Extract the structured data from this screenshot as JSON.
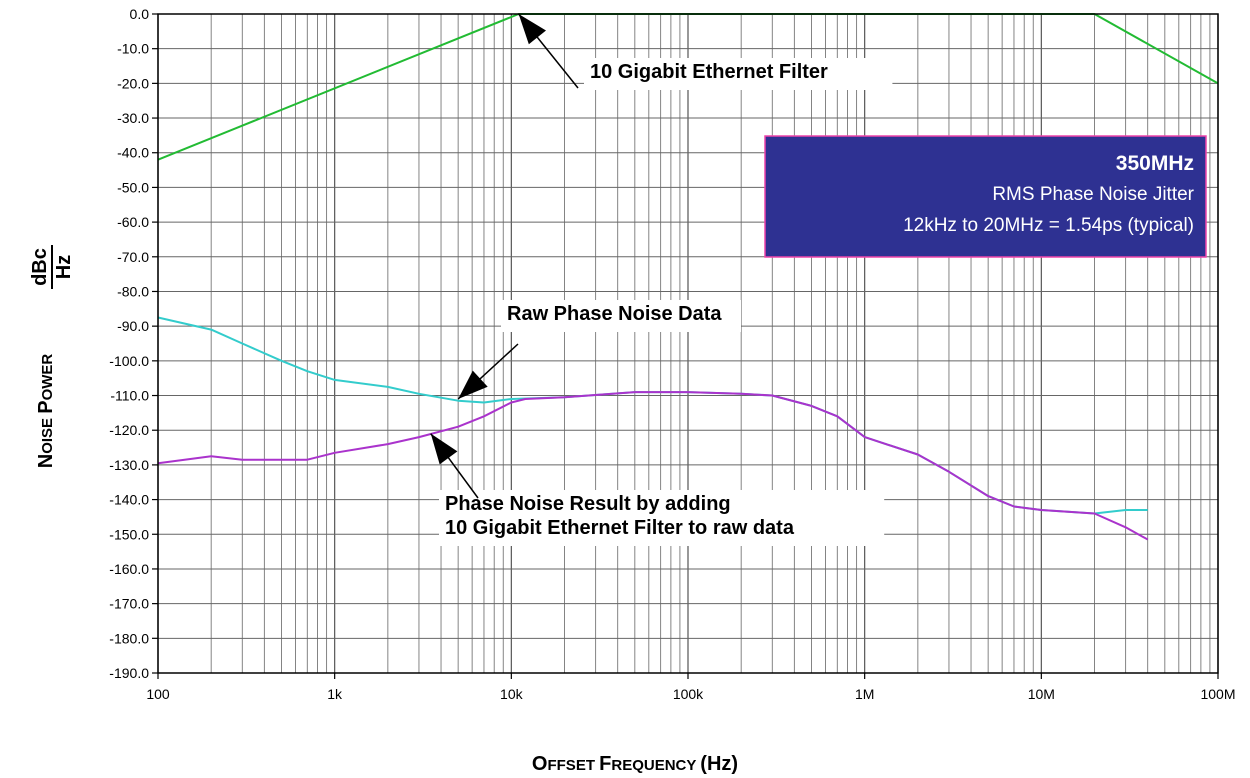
{
  "chart_data": {
    "type": "line",
    "xscale": "log",
    "xlim": [
      100,
      100000000
    ],
    "ylim": [
      -190,
      0
    ],
    "grid": true,
    "xlabel": {
      "first_big": "O",
      "first_small": "FFSET ",
      "second_big": "F",
      "second_small": "REQUENCY ",
      "unit": "(Hz)"
    },
    "ylabel": {
      "first_big": "N",
      "first_small": "OISE ",
      "second_big": "P",
      "second_small": "OWER",
      "unit_top": "dBc",
      "unit_bottom": "Hz"
    },
    "x_ticks": [
      {
        "value": 100,
        "label": "100"
      },
      {
        "value": 1000,
        "label": "1k"
      },
      {
        "value": 10000,
        "label": "10k"
      },
      {
        "value": 100000,
        "label": "100k"
      },
      {
        "value": 1000000,
        "label": "1M"
      },
      {
        "value": 10000000,
        "label": "10M"
      },
      {
        "value": 100000000,
        "label": "100M"
      }
    ],
    "y_ticks": [
      {
        "value": 0,
        "label": "0.0"
      },
      {
        "value": -10,
        "label": "-10.0"
      },
      {
        "value": -20,
        "label": "-20.0"
      },
      {
        "value": -30,
        "label": "-30.0"
      },
      {
        "value": -40,
        "label": "-40.0"
      },
      {
        "value": -50,
        "label": "-50.0"
      },
      {
        "value": -60,
        "label": "-60.0"
      },
      {
        "value": -70,
        "label": "-70.0"
      },
      {
        "value": -80,
        "label": "-80.0"
      },
      {
        "value": -90,
        "label": "-90.0"
      },
      {
        "value": -100,
        "label": "-100.0"
      },
      {
        "value": -110,
        "label": "-110.0"
      },
      {
        "value": -120,
        "label": "-120.0"
      },
      {
        "value": -130,
        "label": "-130.0"
      },
      {
        "value": -140,
        "label": "-140.0"
      },
      {
        "value": -150,
        "label": "-150.0"
      },
      {
        "value": -160,
        "label": "-160.0"
      },
      {
        "value": -170,
        "label": "-170.0"
      },
      {
        "value": -180,
        "label": "-180.0"
      },
      {
        "value": -190,
        "label": "-190.0"
      }
    ],
    "series": [
      {
        "color": "#22bb33",
        "points": [
          [
            100,
            -42
          ],
          [
            11000,
            0
          ],
          [
            20000000,
            0
          ],
          [
            100000000,
            -20
          ]
        ]
      },
      {
        "color": "#33cccc",
        "points": [
          [
            100,
            -87.5
          ],
          [
            200,
            -91
          ],
          [
            300,
            -95
          ],
          [
            500,
            -100
          ],
          [
            700,
            -103
          ],
          [
            1000,
            -105.5
          ],
          [
            2000,
            -107.5
          ],
          [
            3000,
            -109.5
          ],
          [
            5000,
            -111.5
          ],
          [
            7000,
            -112
          ],
          [
            10000,
            -111
          ],
          [
            20000,
            -110.5
          ],
          [
            50000,
            -109
          ],
          [
            100000,
            -109
          ],
          [
            200000,
            -109.5
          ],
          [
            300000,
            -110
          ],
          [
            500000,
            -113
          ],
          [
            700000,
            -116
          ],
          [
            1000000,
            -122
          ],
          [
            2000000,
            -127
          ],
          [
            3000000,
            -132
          ],
          [
            5000000,
            -139
          ],
          [
            7000000,
            -142
          ],
          [
            10000000,
            -143
          ],
          [
            20000000,
            -144
          ],
          [
            30000000,
            -143
          ],
          [
            40000000,
            -143
          ]
        ]
      },
      {
        "color": "#aa33cc",
        "points": [
          [
            100,
            -129.5
          ],
          [
            200,
            -127.5
          ],
          [
            300,
            -128.5
          ],
          [
            500,
            -128.5
          ],
          [
            700,
            -128.5
          ],
          [
            1000,
            -126.5
          ],
          [
            2000,
            -124
          ],
          [
            3000,
            -122
          ],
          [
            5000,
            -119
          ],
          [
            7000,
            -116
          ],
          [
            10000,
            -112
          ],
          [
            12000,
            -111
          ],
          [
            20000,
            -110.5
          ],
          [
            50000,
            -109
          ],
          [
            100000,
            -109
          ],
          [
            200000,
            -109.5
          ],
          [
            300000,
            -110
          ],
          [
            500000,
            -113
          ],
          [
            700000,
            -116
          ],
          [
            1000000,
            -122
          ],
          [
            2000000,
            -127
          ],
          [
            3000000,
            -132
          ],
          [
            5000000,
            -139
          ],
          [
            7000000,
            -142
          ],
          [
            10000000,
            -143
          ],
          [
            20000000,
            -144
          ],
          [
            30000000,
            -148
          ],
          [
            40000000,
            -151.5
          ]
        ]
      }
    ],
    "annotations": [
      {
        "lines": [
          "10 Gigabit Ethernet Filter"
        ],
        "target": [
          11000,
          0
        ],
        "text_anchor": [
          20000,
          -20
        ]
      },
      {
        "lines": [
          "Raw Phase Noise Data"
        ],
        "target": [
          5000,
          -111
        ],
        "text_anchor": [
          20000,
          -90
        ]
      },
      {
        "lines": [
          "Phase Noise Result by adding",
          "10 Gigabit Ethernet Filter to raw data"
        ],
        "target": [
          3500,
          -121
        ],
        "text_anchor": [
          20000,
          -145
        ]
      }
    ],
    "info_box": {
      "title": "350MHz",
      "line1": "RMS Phase Noise Jitter",
      "line2": "12kHz to 20MHz = 1.54ps (typical)",
      "bg_color": "#2e3192",
      "border_color": "#ee44aa"
    }
  }
}
